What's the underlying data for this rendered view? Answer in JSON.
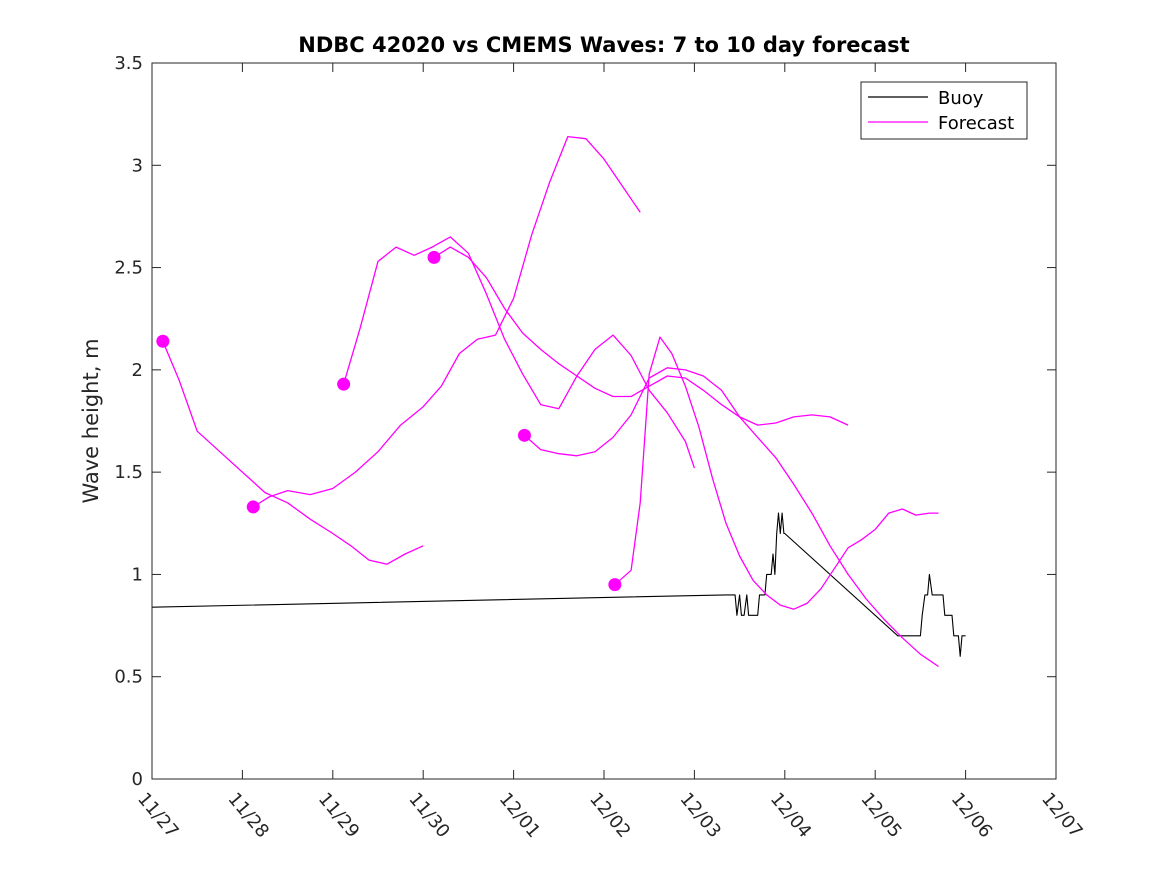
{
  "chart_data": {
    "type": "line",
    "title": "NDBC 42020 vs CMEMS Waves: 7 to 10 day forecast",
    "xlabel": "",
    "ylabel": "Wave height, m",
    "xlim": [
      0,
      10
    ],
    "ylim": [
      0,
      3.5
    ],
    "x_tick_values": [
      0,
      1,
      2,
      3,
      4,
      5,
      6,
      7,
      8,
      9,
      10
    ],
    "x_tick_labels": [
      "11/27",
      "11/28",
      "11/29",
      "11/30",
      "12/01",
      "12/02",
      "12/03",
      "12/04",
      "12/05",
      "12/06",
      "12/07"
    ],
    "y_tick_values": [
      0,
      0.5,
      1,
      1.5,
      2,
      2.5,
      3,
      3.5
    ],
    "y_tick_labels": [
      "0",
      "0.5",
      "1",
      "1.5",
      "2",
      "2.5",
      "3",
      "3.5"
    ],
    "grid": false,
    "legend": {
      "position": "top-right",
      "entries": [
        {
          "name": "Buoy",
          "color": "#000000"
        },
        {
          "name": "Forecast",
          "color": "#ff00ff"
        }
      ]
    },
    "colors": {
      "buoy": "#000000",
      "forecast": "#ff00ff"
    },
    "series": [
      {
        "name": "Buoy",
        "color": "#000000",
        "points": [
          [
            0,
            0.84
          ],
          [
            6.35,
            0.9
          ],
          [
            6.45,
            0.9
          ],
          [
            6.47,
            0.8
          ],
          [
            6.5,
            0.9
          ],
          [
            6.52,
            0.8
          ],
          [
            6.55,
            0.8
          ],
          [
            6.58,
            0.9
          ],
          [
            6.6,
            0.8
          ],
          [
            6.65,
            0.8
          ],
          [
            6.68,
            0.8
          ],
          [
            6.7,
            0.8
          ],
          [
            6.72,
            0.9
          ],
          [
            6.75,
            0.9
          ],
          [
            6.78,
            0.9
          ],
          [
            6.8,
            1.0
          ],
          [
            6.85,
            1.0
          ],
          [
            6.87,
            1.1
          ],
          [
            6.89,
            1.0
          ],
          [
            6.91,
            1.2
          ],
          [
            6.93,
            1.3
          ],
          [
            6.95,
            1.2
          ],
          [
            6.97,
            1.3
          ],
          [
            6.99,
            1.2
          ],
          [
            7.0,
            1.2
          ],
          [
            8.25,
            0.7
          ],
          [
            8.5,
            0.7
          ],
          [
            8.52,
            0.8
          ],
          [
            8.55,
            0.9
          ],
          [
            8.58,
            0.9
          ],
          [
            8.6,
            1.0
          ],
          [
            8.63,
            0.9
          ],
          [
            8.75,
            0.9
          ],
          [
            8.77,
            0.8
          ],
          [
            8.85,
            0.8
          ],
          [
            8.87,
            0.7
          ],
          [
            8.92,
            0.7
          ],
          [
            8.94,
            0.6
          ],
          [
            8.96,
            0.7
          ],
          [
            9.0,
            0.7
          ]
        ]
      },
      {
        "name": "Forecast",
        "color": "#ff00ff",
        "points": [
          [
            0.12,
            2.14
          ],
          [
            0.3,
            1.95
          ],
          [
            0.5,
            1.7
          ],
          [
            0.75,
            1.6
          ],
          [
            1.0,
            1.5
          ],
          [
            1.25,
            1.4
          ],
          [
            1.5,
            1.35
          ],
          [
            1.75,
            1.27
          ],
          [
            2.0,
            1.2
          ],
          [
            2.2,
            1.14
          ],
          [
            2.4,
            1.07
          ],
          [
            2.6,
            1.05
          ],
          [
            2.8,
            1.1
          ],
          [
            3.0,
            1.14
          ]
        ]
      },
      {
        "name": "Forecast",
        "color": "#ff00ff",
        "points": [
          [
            1.12,
            1.33
          ],
          [
            1.3,
            1.38
          ],
          [
            1.5,
            1.41
          ],
          [
            1.75,
            1.39
          ],
          [
            2.0,
            1.42
          ],
          [
            2.25,
            1.5
          ],
          [
            2.5,
            1.6
          ],
          [
            2.75,
            1.73
          ],
          [
            3.0,
            1.82
          ],
          [
            3.2,
            1.92
          ],
          [
            3.4,
            2.08
          ],
          [
            3.6,
            2.15
          ],
          [
            3.8,
            2.17
          ],
          [
            4.0,
            2.35
          ],
          [
            4.2,
            2.66
          ],
          [
            4.4,
            2.92
          ],
          [
            4.6,
            3.14
          ],
          [
            4.8,
            3.13
          ],
          [
            5.0,
            3.03
          ],
          [
            5.2,
            2.9
          ],
          [
            5.4,
            2.77
          ]
        ]
      },
      {
        "name": "Forecast",
        "color": "#ff00ff",
        "points": [
          [
            2.12,
            1.93
          ],
          [
            2.3,
            2.2
          ],
          [
            2.5,
            2.53
          ],
          [
            2.7,
            2.6
          ],
          [
            2.9,
            2.56
          ],
          [
            3.1,
            2.6
          ],
          [
            3.3,
            2.65
          ],
          [
            3.5,
            2.57
          ],
          [
            3.7,
            2.37
          ],
          [
            3.9,
            2.15
          ],
          [
            4.1,
            1.98
          ],
          [
            4.3,
            1.83
          ],
          [
            4.5,
            1.81
          ],
          [
            4.7,
            1.97
          ],
          [
            4.9,
            2.1
          ],
          [
            5.1,
            2.17
          ],
          [
            5.3,
            2.07
          ],
          [
            5.5,
            1.9
          ],
          [
            5.7,
            1.79
          ],
          [
            5.9,
            1.65
          ],
          [
            6.0,
            1.52
          ]
        ]
      },
      {
        "name": "Forecast",
        "color": "#ff00ff",
        "points": [
          [
            3.12,
            2.55
          ],
          [
            3.3,
            2.6
          ],
          [
            3.5,
            2.55
          ],
          [
            3.7,
            2.45
          ],
          [
            3.9,
            2.3
          ],
          [
            4.1,
            2.18
          ],
          [
            4.3,
            2.1
          ],
          [
            4.5,
            2.03
          ],
          [
            4.7,
            1.97
          ],
          [
            4.9,
            1.91
          ],
          [
            5.1,
            1.87
          ],
          [
            5.3,
            1.87
          ],
          [
            5.5,
            1.92
          ],
          [
            5.7,
            1.97
          ],
          [
            5.9,
            1.96
          ],
          [
            6.1,
            1.9
          ],
          [
            6.3,
            1.83
          ],
          [
            6.5,
            1.77
          ],
          [
            6.7,
            1.73
          ],
          [
            6.9,
            1.74
          ],
          [
            7.1,
            1.77
          ],
          [
            7.3,
            1.78
          ],
          [
            7.5,
            1.77
          ],
          [
            7.7,
            1.73
          ]
        ]
      },
      {
        "name": "Forecast",
        "color": "#ff00ff",
        "points": [
          [
            4.12,
            1.68
          ],
          [
            4.3,
            1.61
          ],
          [
            4.5,
            1.59
          ],
          [
            4.7,
            1.58
          ],
          [
            4.9,
            1.6
          ],
          [
            5.1,
            1.67
          ],
          [
            5.3,
            1.78
          ],
          [
            5.5,
            1.96
          ],
          [
            5.7,
            2.01
          ],
          [
            5.9,
            2.0
          ],
          [
            6.1,
            1.97
          ],
          [
            6.3,
            1.9
          ],
          [
            6.5,
            1.77
          ],
          [
            6.7,
            1.67
          ],
          [
            6.9,
            1.57
          ],
          [
            7.1,
            1.44
          ],
          [
            7.3,
            1.3
          ],
          [
            7.5,
            1.14
          ],
          [
            7.7,
            1.0
          ],
          [
            7.9,
            0.88
          ],
          [
            8.1,
            0.78
          ],
          [
            8.3,
            0.69
          ],
          [
            8.5,
            0.61
          ],
          [
            8.7,
            0.55
          ]
        ]
      },
      {
        "name": "Forecast",
        "color": "#ff00ff",
        "points": [
          [
            5.12,
            0.95
          ],
          [
            5.3,
            1.02
          ],
          [
            5.4,
            1.35
          ],
          [
            5.5,
            1.98
          ],
          [
            5.62,
            2.16
          ],
          [
            5.75,
            2.08
          ],
          [
            5.9,
            1.92
          ],
          [
            6.05,
            1.72
          ],
          [
            6.2,
            1.47
          ],
          [
            6.35,
            1.25
          ],
          [
            6.5,
            1.09
          ],
          [
            6.65,
            0.97
          ],
          [
            6.8,
            0.9
          ],
          [
            6.95,
            0.85
          ],
          [
            7.1,
            0.83
          ],
          [
            7.25,
            0.86
          ],
          [
            7.4,
            0.93
          ],
          [
            7.55,
            1.03
          ],
          [
            7.7,
            1.13
          ],
          [
            7.85,
            1.17
          ],
          [
            8.0,
            1.22
          ],
          [
            8.15,
            1.3
          ],
          [
            8.3,
            1.32
          ],
          [
            8.45,
            1.29
          ],
          [
            8.6,
            1.3
          ],
          [
            8.7,
            1.3
          ]
        ]
      }
    ],
    "forecast_start_markers": [
      [
        0.12,
        2.14
      ],
      [
        1.12,
        1.33
      ],
      [
        2.12,
        1.93
      ],
      [
        3.12,
        2.55
      ],
      [
        4.12,
        1.68
      ],
      [
        5.12,
        0.95
      ]
    ]
  }
}
